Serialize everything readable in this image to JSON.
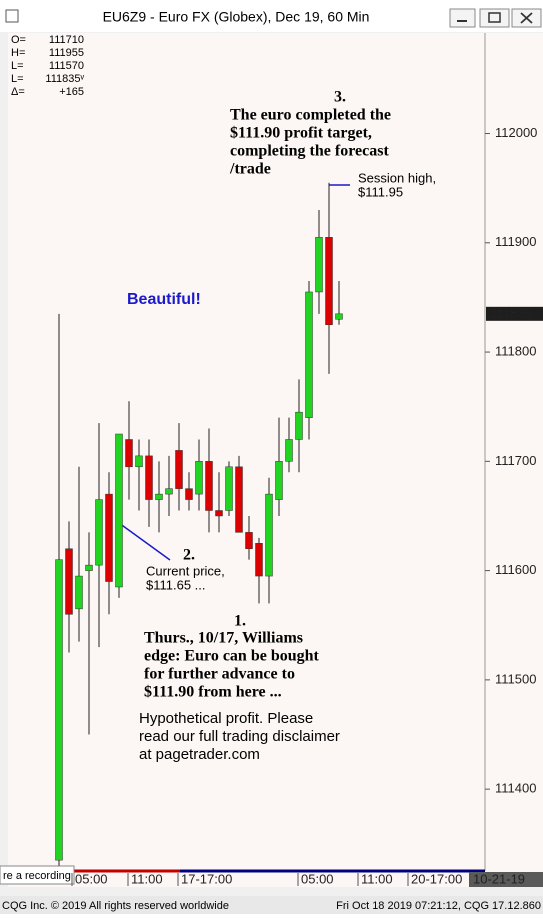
{
  "window": {
    "title": "EU6Z9 - Euro FX (Globex), Dec 19, 60 Min",
    "overlay": "re a recording",
    "status_left": "CQG Inc. © 2019 All rights reserved worldwide",
    "status_right": "Fri Oct 18 2019 07:21:12, CQG 17.12.860"
  },
  "chart_data": {
    "type": "candlestick",
    "open": [
      111335,
      111620,
      111565,
      111600,
      111605,
      111670,
      111585,
      111720,
      111695,
      111705,
      111665,
      111670,
      111710,
      111675,
      111670,
      111700,
      111655,
      111655,
      111695,
      111635,
      111625,
      111595,
      111665,
      111700,
      111720,
      111740,
      111855,
      111905,
      111830
    ],
    "high": [
      111835,
      111645,
      111695,
      111635,
      111735,
      111690,
      111725,
      111755,
      111720,
      111720,
      111700,
      111705,
      111735,
      111690,
      111720,
      111730,
      111690,
      111700,
      111705,
      111650,
      111630,
      111685,
      111740,
      111740,
      111775,
      111865,
      111930,
      111955,
      111865
    ],
    "low": [
      111330,
      111525,
      111535,
      111450,
      111530,
      111560,
      111575,
      111665,
      111655,
      111640,
      111635,
      111650,
      111655,
      111655,
      111655,
      111635,
      111635,
      111650,
      111635,
      111610,
      111570,
      111570,
      111650,
      111690,
      111690,
      111720,
      111835,
      111780,
      111825
    ],
    "close": [
      111610,
      111560,
      111595,
      111605,
      111665,
      111590,
      111725,
      111695,
      111705,
      111665,
      111670,
      111675,
      111675,
      111665,
      111700,
      111655,
      111650,
      111695,
      111635,
      111620,
      111595,
      111670,
      111700,
      111720,
      111745,
      111855,
      111905,
      111825,
      111835
    ],
    "up_color": "#22d422",
    "down_color": "#dd0000",
    "ylim": [
      111326,
      112092
    ],
    "yticks": [
      111400,
      111500,
      111600,
      111700,
      111800,
      111900,
      112000
    ],
    "xlim": [
      -5.1,
      42.6
    ],
    "xticks": [
      {
        "value": 1.3,
        "label": "05:00"
      },
      {
        "value": 6.9,
        "label": "11:00"
      },
      {
        "value": 11.9,
        "label": "17-17:00"
      },
      {
        "value": 23.9,
        "label": "05:00"
      },
      {
        "value": 29.9,
        "label": "11:00"
      },
      {
        "value": 34.9,
        "label": "20-17:00"
      },
      {
        "value": 41.1,
        "label": "10-21-19"
      }
    ],
    "last_price": 111835,
    "info": [
      {
        "key": "O=",
        "value": "111710"
      },
      {
        "key": "H=",
        "value": "111955"
      },
      {
        "key": "L=",
        "value": "111570"
      },
      {
        "key": "L=",
        "value": "111835ᵛ"
      },
      {
        "key": "Δ=",
        "value": "+165"
      }
    ],
    "annotations": {
      "note3": {
        "number": "3.",
        "lines": [
          "The euro completed the",
          "$111.90 profit target,",
          "completing the forecast",
          "/trade"
        ]
      },
      "session_high": [
        "Session high,",
        "$111.95"
      ],
      "beautiful": "Beautiful!",
      "note2": {
        "number": "2.",
        "lines": [
          "Current price,",
          "$111.65 ..."
        ]
      },
      "note1": {
        "number": "1.",
        "lines": [
          "Thurs., 10/17, Williams",
          "edge: Euro can be bought",
          "for further advance to",
          "$111.90 from here ..."
        ]
      },
      "disclaimer": [
        "Hypothetical profit.  Please",
        "read our full trading disclaimer",
        "at pagetrader.com"
      ]
    }
  }
}
